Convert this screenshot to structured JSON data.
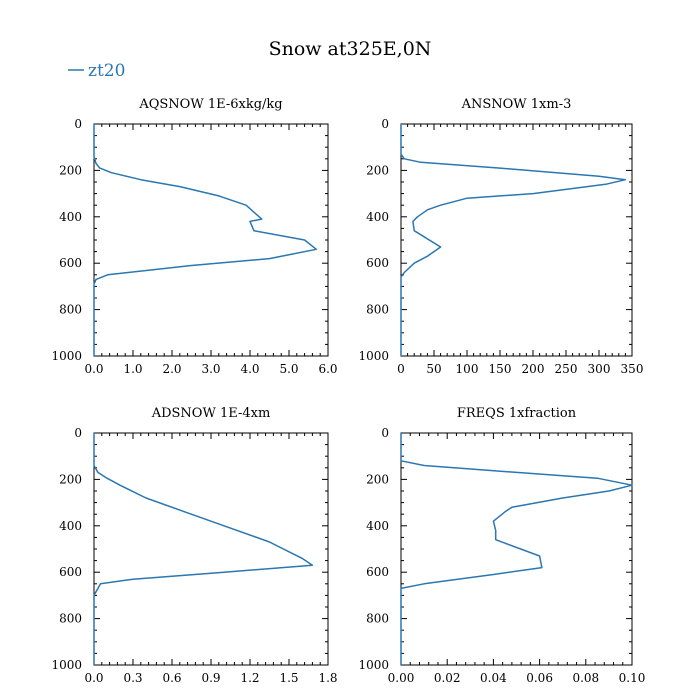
{
  "figure": {
    "title": "Snow at325E,0N",
    "legend": {
      "label": "zt20",
      "color": "#2a77b1"
    }
  },
  "chart_data": [
    {
      "type": "line",
      "title": "AQSNOW  1E-6xkg/kg",
      "xlim": [
        0,
        6
      ],
      "ylim": [
        1000,
        0
      ],
      "xticks": [
        "0.0",
        "1.0",
        "2.0",
        "3.0",
        "4.0",
        "5.0",
        "6.0"
      ],
      "yticks": [
        "0",
        "200",
        "400",
        "600",
        "800",
        "1000"
      ],
      "series": [
        {
          "name": "zt20",
          "x": [
            0,
            0,
            0.05,
            0.15,
            0.45,
            1.2,
            2.2,
            3.2,
            3.9,
            4.3,
            4.0,
            4.1,
            5.4,
            5.7,
            4.5,
            2.5,
            0.35,
            0.05,
            0,
            0
          ],
          "y": [
            0,
            140,
            170,
            190,
            210,
            240,
            270,
            310,
            350,
            410,
            420,
            460,
            500,
            540,
            580,
            610,
            650,
            670,
            690,
            1000
          ]
        }
      ]
    },
    {
      "type": "line",
      "title": "ANSNOW  1xm-3",
      "xlim": [
        0,
        350
      ],
      "ylim": [
        1000,
        0
      ],
      "xticks": [
        "0",
        "50",
        "100",
        "150",
        "200",
        "250",
        "300",
        "350"
      ],
      "yticks": [
        "0",
        "200",
        "400",
        "600",
        "800",
        "1000"
      ],
      "series": [
        {
          "name": "zt20",
          "x": [
            0,
            0,
            5,
            30,
            150,
            300,
            340,
            310,
            200,
            100,
            60,
            40,
            25,
            18,
            20,
            60,
            40,
            20,
            5,
            0,
            0
          ],
          "y": [
            0,
            130,
            150,
            165,
            190,
            225,
            240,
            260,
            300,
            320,
            350,
            370,
            400,
            420,
            460,
            530,
            570,
            600,
            640,
            660,
            1000
          ]
        }
      ]
    },
    {
      "type": "line",
      "title": "ADSNOW  1E-4xm",
      "xlim": [
        0,
        1.8
      ],
      "ylim": [
        1000,
        0
      ],
      "xticks": [
        "0.0",
        "0.3",
        "0.6",
        "0.9",
        "1.2",
        "1.5",
        "1.8"
      ],
      "yticks": [
        "0",
        "200",
        "400",
        "600",
        "800",
        "1000"
      ],
      "series": [
        {
          "name": "zt20",
          "x": [
            0,
            0,
            0.03,
            0.1,
            0.2,
            0.4,
            0.7,
            1.0,
            1.35,
            1.6,
            1.68,
            1.0,
            0.3,
            0.05,
            0,
            0
          ],
          "y": [
            0,
            140,
            170,
            195,
            225,
            280,
            340,
            400,
            470,
            540,
            570,
            600,
            630,
            650,
            700,
            1000
          ]
        }
      ]
    },
    {
      "type": "line",
      "title": "FREQS  1xfraction",
      "xlim": [
        0,
        0.1
      ],
      "ylim": [
        1000,
        0
      ],
      "xticks": [
        "0.00",
        "0.02",
        "0.04",
        "0.06",
        "0.08",
        "0.10"
      ],
      "yticks": [
        "0",
        "200",
        "400",
        "600",
        "800",
        "1000"
      ],
      "series": [
        {
          "name": "zt20",
          "x": [
            0,
            0,
            0.01,
            0.05,
            0.085,
            0.1,
            0.09,
            0.07,
            0.048,
            0.045,
            0.04,
            0.041,
            0.041,
            0.06,
            0.061,
            0.04,
            0.01,
            0,
            0
          ],
          "y": [
            0,
            120,
            140,
            170,
            195,
            225,
            250,
            280,
            320,
            340,
            380,
            420,
            460,
            530,
            580,
            610,
            650,
            670,
            1000
          ]
        }
      ]
    }
  ]
}
